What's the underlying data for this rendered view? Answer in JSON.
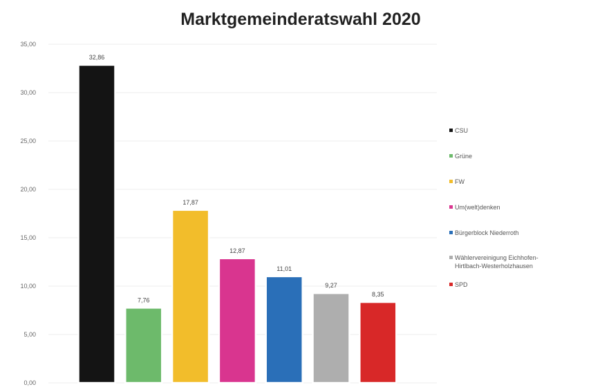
{
  "chart_data": {
    "type": "bar",
    "title": "Marktgemeinderatswahl 2020",
    "xlabel": "",
    "ylabel": "",
    "ylim": [
      0,
      35
    ],
    "yticks": [
      "0,00",
      "5,00",
      "10,00",
      "15,00",
      "20,00",
      "25,00",
      "30,00",
      "35,00"
    ],
    "grid": true,
    "legend_position": "right",
    "categories": [
      "CSU",
      "Grüne",
      "FW",
      "Um(welt)denken",
      "Bürgerblock Niederroth",
      "Wählervereinigung Eichhofen-Hirtlbach-Westerholzhausen",
      "SPD"
    ],
    "values": [
      32.86,
      7.76,
      17.87,
      12.87,
      11.01,
      9.27,
      8.35
    ],
    "value_labels": [
      "32,86",
      "7,76",
      "17,87",
      "12,87",
      "11,01",
      "9,27",
      "8,35"
    ],
    "colors": [
      "#141414",
      "#6dba6b",
      "#f2bd2b",
      "#d9358f",
      "#2a6fb8",
      "#aeaeae",
      "#d82828"
    ]
  }
}
